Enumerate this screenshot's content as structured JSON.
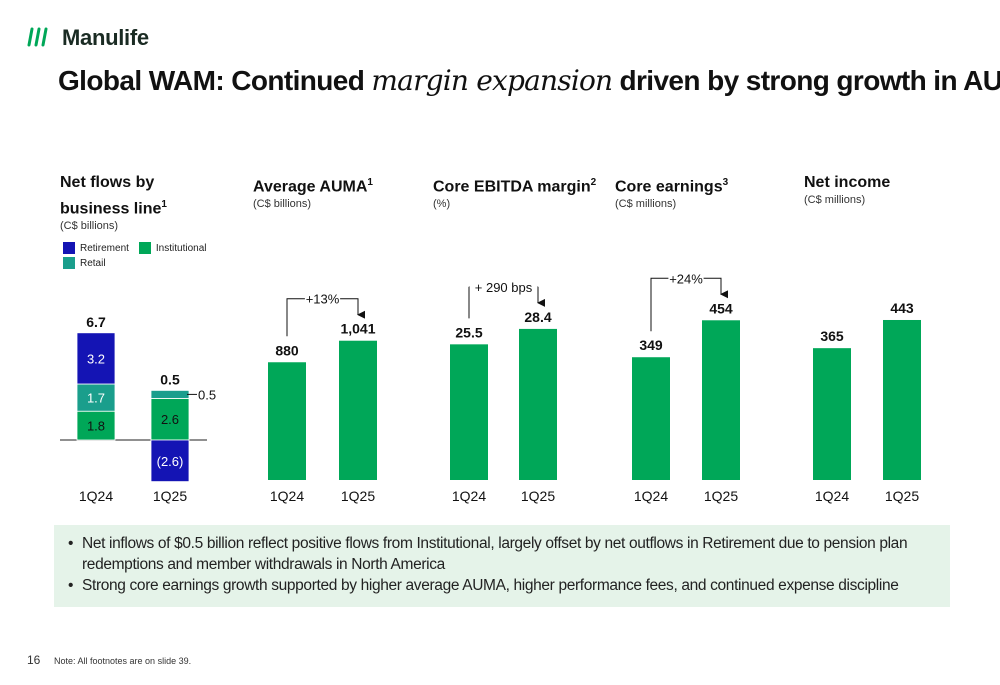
{
  "brand": {
    "name": "Manulife",
    "color": "#00a758"
  },
  "title": {
    "part1": "Global WAM: Continued ",
    "italic": "margin expansion",
    "part2": " driven by strong growth in AUM"
  },
  "panels": {
    "net_flows": {
      "title_line1": "Net flows by",
      "title_line2": "business line",
      "sup": "1",
      "unit": "(C$ billions)",
      "legend": [
        {
          "label": "Retirement",
          "color": "#1414b4"
        },
        {
          "label": "Institutional",
          "color": "#00a758"
        },
        {
          "label": "Retail",
          "color": "#1a9e8c"
        }
      ]
    },
    "auma": {
      "title": "Average AUMA",
      "sup": "1",
      "unit": "(C$ billions)"
    },
    "ebitda": {
      "title": "Core EBITDA margin",
      "sup": "2",
      "unit": "(%)"
    },
    "core_earnings": {
      "title": "Core earnings",
      "sup": "3",
      "unit": "(C$ millions)"
    },
    "net_income": {
      "title": "Net income",
      "sup": "",
      "unit": "(C$ millions)"
    }
  },
  "chart_data": [
    {
      "type": "bar",
      "stacked": true,
      "title": "Net flows by business line",
      "unit": "(C$ billions)",
      "categories": [
        "1Q24",
        "1Q25"
      ],
      "series": [
        {
          "name": "Institutional",
          "color": "#00a758",
          "values": [
            1.8,
            2.6
          ],
          "labels": [
            "1.8",
            "2.6"
          ]
        },
        {
          "name": "Retail",
          "color": "#1a9e8c",
          "values": [
            1.7,
            0.5
          ],
          "labels": [
            "1.7",
            "0.5"
          ]
        },
        {
          "name": "Retirement",
          "color": "#1414b4",
          "values": [
            3.2,
            -2.6
          ],
          "labels": [
            "3.2",
            "(2.6)"
          ]
        }
      ],
      "totals": [
        "6.7",
        "0.5"
      ]
    },
    {
      "type": "bar",
      "title": "Average AUMA",
      "unit": "(C$ billions)",
      "categories": [
        "1Q24",
        "1Q25"
      ],
      "values": [
        880,
        1041
      ],
      "labels": [
        "880",
        "1,041"
      ],
      "annotation": "+13%"
    },
    {
      "type": "bar",
      "title": "Core EBITDA margin",
      "unit": "(%)",
      "categories": [
        "1Q24",
        "1Q25"
      ],
      "values": [
        25.5,
        28.4
      ],
      "labels": [
        "25.5",
        "28.4"
      ],
      "annotation": "+ 290 bps"
    },
    {
      "type": "bar",
      "title": "Core earnings",
      "unit": "(C$ millions)",
      "categories": [
        "1Q24",
        "1Q25"
      ],
      "values": [
        349,
        454
      ],
      "labels": [
        "349",
        "454"
      ],
      "annotation": "+24%"
    },
    {
      "type": "bar",
      "title": "Net income",
      "unit": "(C$ millions)",
      "categories": [
        "1Q24",
        "1Q25"
      ],
      "values": [
        365,
        443
      ],
      "labels": [
        "365",
        "443"
      ]
    }
  ],
  "bullets": [
    "Net inflows of $0.5 billion reflect positive flows from Institutional, largely offset by net outflows in Retirement due to pension plan redemptions and member withdrawals in North America",
    "Strong core earnings growth supported by higher average AUMA, higher performance fees, and continued expense discipline"
  ],
  "page_number": "16",
  "note": "Note: All footnotes are on slide 39."
}
